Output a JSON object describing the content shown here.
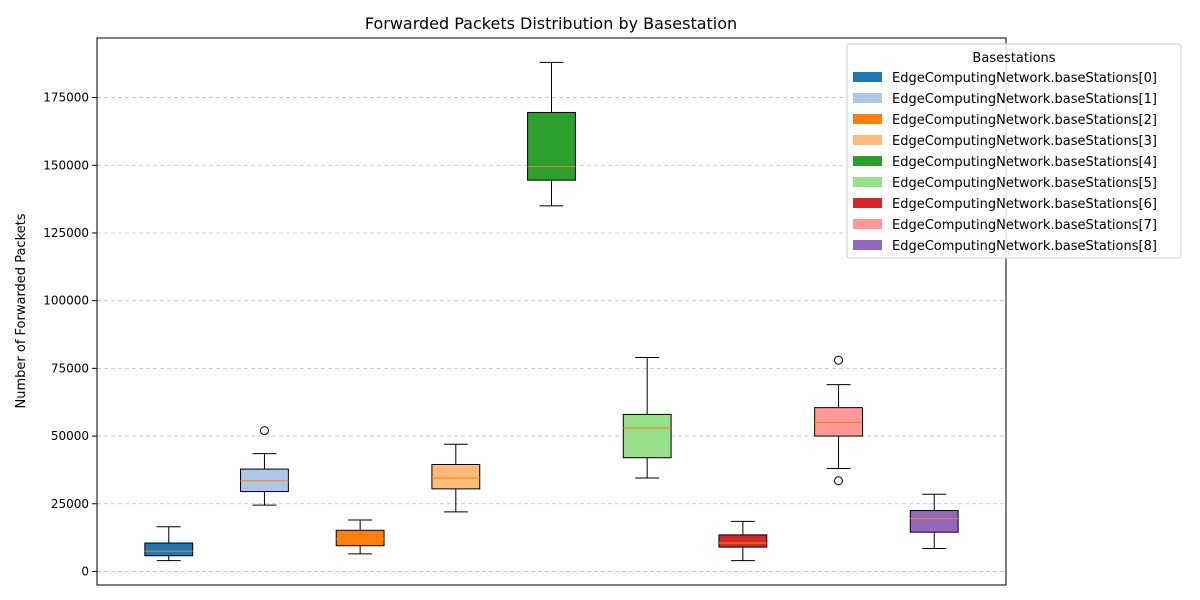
{
  "chart_data": {
    "type": "box",
    "title": "Forwarded Packets Distribution by Basestation",
    "xlabel": "",
    "ylabel": "Number of Forwarded Packets",
    "ylim": [
      -5000,
      197000
    ],
    "yticks": [
      0,
      25000,
      50000,
      75000,
      100000,
      125000,
      150000,
      175000
    ],
    "ytick_labels": [
      "0",
      "25000",
      "50000",
      "75000",
      "100000",
      "125000",
      "150000",
      "175000"
    ],
    "grid": "horizontal dashed",
    "legend": {
      "title": "Basestations",
      "placement": "top-right"
    },
    "median_color": "#ff7f0e",
    "series": [
      {
        "name": "EdgeComputingNetwork.baseStations[0]",
        "color": "#1f77b4",
        "whisker_low": 4000,
        "q1": 5800,
        "median": 7500,
        "q3": 10500,
        "whisker_high": 16500,
        "outliers": []
      },
      {
        "name": "EdgeComputingNetwork.baseStations[1]",
        "color": "#aec7e8",
        "whisker_low": 24500,
        "q1": 29500,
        "median": 33500,
        "q3": 37800,
        "whisker_high": 43500,
        "outliers": [
          52000
        ]
      },
      {
        "name": "EdgeComputingNetwork.baseStations[2]",
        "color": "#ff7f0e",
        "whisker_low": 6500,
        "q1": 9500,
        "median": 12000,
        "q3": 15200,
        "whisker_high": 19000,
        "outliers": []
      },
      {
        "name": "EdgeComputingNetwork.baseStations[3]",
        "color": "#ffbb78",
        "whisker_low": 22000,
        "q1": 30500,
        "median": 34500,
        "q3": 39500,
        "whisker_high": 47000,
        "outliers": []
      },
      {
        "name": "EdgeComputingNetwork.baseStations[4]",
        "color": "#2ca02c",
        "whisker_low": 135000,
        "q1": 144500,
        "median": 149500,
        "q3": 169500,
        "whisker_high": 188000,
        "outliers": []
      },
      {
        "name": "EdgeComputingNetwork.baseStations[5]",
        "color": "#98df8a",
        "whisker_low": 34500,
        "q1": 42000,
        "median": 53000,
        "q3": 58000,
        "whisker_high": 79000,
        "outliers": []
      },
      {
        "name": "EdgeComputingNetwork.baseStations[6]",
        "color": "#d62728",
        "whisker_low": 4000,
        "q1": 9000,
        "median": 10500,
        "q3": 13500,
        "whisker_high": 18500,
        "outliers": []
      },
      {
        "name": "EdgeComputingNetwork.baseStations[7]",
        "color": "#ff9896",
        "whisker_low": 38000,
        "q1": 50000,
        "median": 55000,
        "q3": 60500,
        "whisker_high": 69000,
        "outliers": [
          78000,
          33500
        ]
      },
      {
        "name": "EdgeComputingNetwork.baseStations[8]",
        "color": "#9467bd",
        "whisker_low": 8500,
        "q1": 14500,
        "median": 19500,
        "q3": 22500,
        "whisker_high": 28500,
        "outliers": []
      }
    ]
  }
}
